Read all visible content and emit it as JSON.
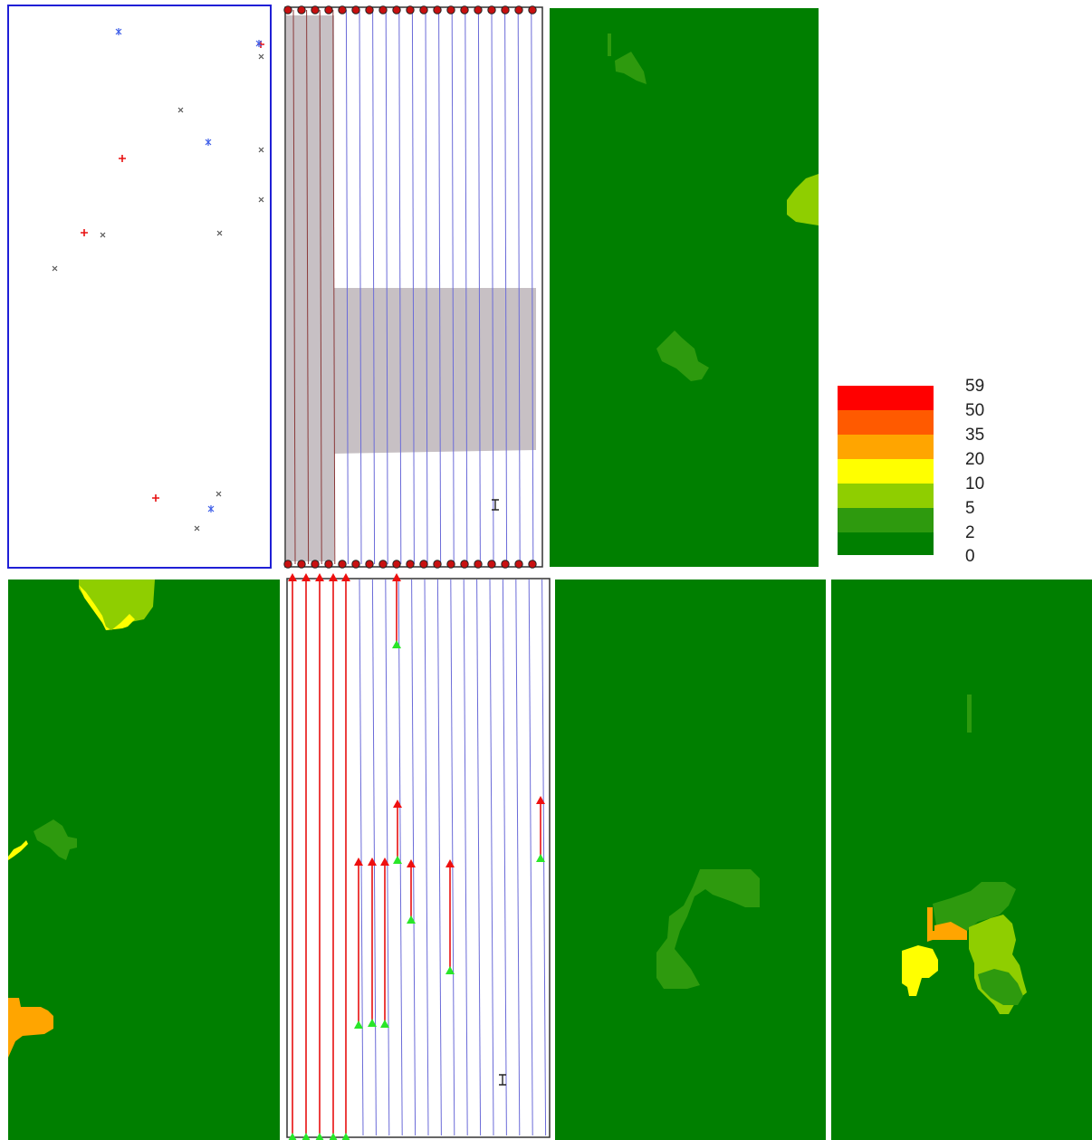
{
  "colors": {
    "bg": "#ffffff",
    "dark_green": "#007f00",
    "mid_green": "#2e9a0e",
    "light_green": "#8fce00",
    "yellow": "#ffff00",
    "orange": "#ffa500",
    "orange_red": "#ff5a00",
    "red": "#ff0000",
    "border_blue": "#1f1fd6",
    "grid_blue": "#6b6bd8",
    "plot_red": "#e81010",
    "shade": "#c7c0c4",
    "marker_green": "#29e629"
  },
  "legend": {
    "labels": [
      "59",
      "50",
      "35",
      "20",
      "10",
      "5",
      "2",
      "0"
    ],
    "colors": [
      "#ff0000",
      "#ff5a00",
      "#ffa500",
      "#ffff00",
      "#8fce00",
      "#2e9a0e",
      "#2e9a0e",
      "#007f00"
    ]
  },
  "panels": [
    {
      "name": "sample-points-map",
      "icons": [
        "plus-marker-icon",
        "asterisk-marker-icon",
        "x-marker-icon"
      ]
    },
    {
      "name": "survey-lines-top",
      "icons": [
        "circle-marker-icon",
        "anchor-icon"
      ]
    },
    {
      "name": "raster-map-top"
    },
    {
      "name": "raster-map-bottom-left"
    },
    {
      "name": "survey-lines-bottom",
      "icons": [
        "triangle-up-icon",
        "anchor-icon"
      ]
    },
    {
      "name": "raster-map-bottom-mid"
    },
    {
      "name": "raster-map-bottom-right"
    }
  ]
}
